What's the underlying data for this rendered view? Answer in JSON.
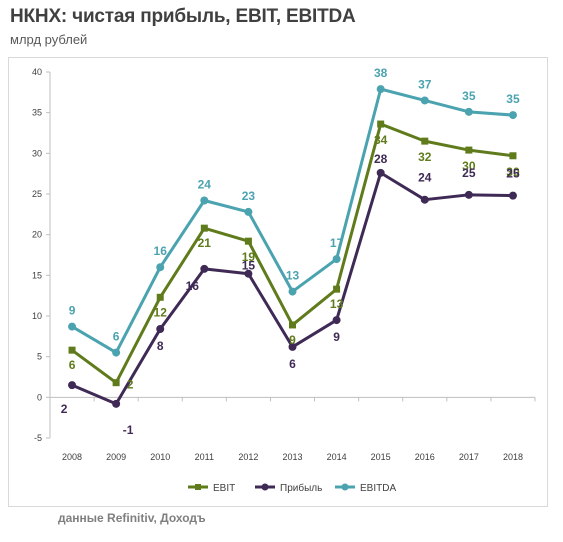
{
  "header": {
    "title": "НКНХ: чистая прибыль, EBIT, EBITDA",
    "subtitle": "млрд рублей"
  },
  "footer": {
    "source": "данные Refinitiv, Доходъ"
  },
  "chart_data": {
    "type": "line",
    "x": [
      "2008",
      "2009",
      "2010",
      "2011",
      "2012",
      "2013",
      "2014",
      "2015",
      "2016",
      "2017",
      "2018"
    ],
    "ylim": [
      -5,
      40
    ],
    "yticks": [
      -5,
      0,
      5,
      10,
      15,
      20,
      25,
      30,
      35,
      40
    ],
    "grid": false,
    "legend_position": "bottom",
    "series": [
      {
        "name": "EBIT",
        "color": "#5f7b1b",
        "marker": "square",
        "values": [
          5.8,
          1.8,
          12.3,
          20.8,
          19.2,
          8.9,
          13.3,
          33.6,
          31.5,
          30.4,
          29.7
        ],
        "labels": [
          "6",
          "2",
          "12",
          "21",
          "19",
          "9",
          "13",
          "34",
          "32",
          "30",
          "30"
        ]
      },
      {
        "name": "Прибыль",
        "color": "#3f2a56",
        "marker": "circle",
        "values": [
          1.5,
          -0.8,
          8.4,
          15.8,
          15.2,
          6.2,
          9.5,
          27.6,
          24.3,
          24.9,
          24.8
        ],
        "labels": [
          "2",
          "-1",
          "8",
          "16",
          "15",
          "6",
          "9",
          "28",
          "24",
          "25",
          "25"
        ]
      },
      {
        "name": "EBITDA",
        "color": "#4ba3b0",
        "marker": "circle",
        "values": [
          8.7,
          5.5,
          16.0,
          24.2,
          22.8,
          13.0,
          17.0,
          37.9,
          36.5,
          35.1,
          34.7
        ],
        "labels": [
          "9",
          "6",
          "16",
          "24",
          "23",
          "13",
          "17",
          "38",
          "37",
          "35",
          "35"
        ]
      }
    ]
  }
}
